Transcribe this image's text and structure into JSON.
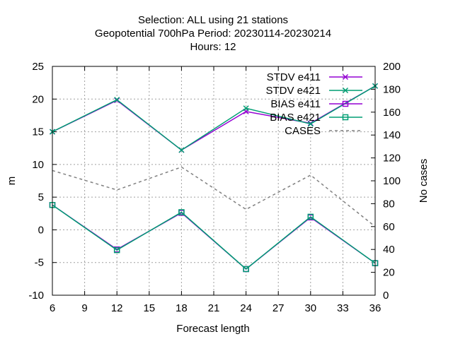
{
  "chart_data": {
    "type": "line",
    "title_lines": [
      "Selection: ALL using    21 stations",
      "Geopotential 700hPa   Period: 20230114-20230214",
      "Hours:  12"
    ],
    "xlabel": "Forecast length",
    "ylabel": "m",
    "y2label": "No cases",
    "x": [
      6,
      12,
      18,
      24,
      30,
      36
    ],
    "xlim": [
      6,
      36
    ],
    "ylim": [
      -10,
      25
    ],
    "y2lim": [
      0,
      200
    ],
    "x_ticks": [
      "6",
      "9",
      "12",
      "15",
      "18",
      "21",
      "24",
      "27",
      "30",
      "33",
      "36"
    ],
    "y_ticks": [
      "-10",
      "-5",
      "0",
      "5",
      "10",
      "15",
      "20",
      "25"
    ],
    "y2_ticks": [
      "0",
      "20",
      "40",
      "60",
      "80",
      "100",
      "120",
      "140",
      "160",
      "180",
      "200"
    ],
    "grid": true,
    "legend_position": "top-right",
    "series": [
      {
        "name": "STDV e411",
        "axis": "y",
        "color": "#9400d3",
        "marker": "x",
        "values": [
          15.0,
          19.8,
          12.2,
          18.1,
          16.3,
          22.0
        ]
      },
      {
        "name": "STDV e421",
        "axis": "y",
        "color": "#009e73",
        "marker": "x",
        "values": [
          15.0,
          19.9,
          12.2,
          18.6,
          16.2,
          22.0
        ]
      },
      {
        "name": "BIAS e411",
        "axis": "y",
        "color": "#9400d3",
        "marker": "square",
        "values": [
          3.8,
          -3.0,
          2.6,
          -6.0,
          1.9,
          -5.1
        ]
      },
      {
        "name": "BIAS e421",
        "axis": "y",
        "color": "#009e73",
        "marker": "square",
        "values": [
          3.8,
          -3.1,
          2.7,
          -6.0,
          2.0,
          -5.1
        ]
      },
      {
        "name": "CASES",
        "axis": "y2",
        "color": "#808080",
        "marker": "none",
        "dashed": true,
        "values": [
          109,
          92,
          112,
          75,
          105,
          60
        ]
      }
    ]
  }
}
